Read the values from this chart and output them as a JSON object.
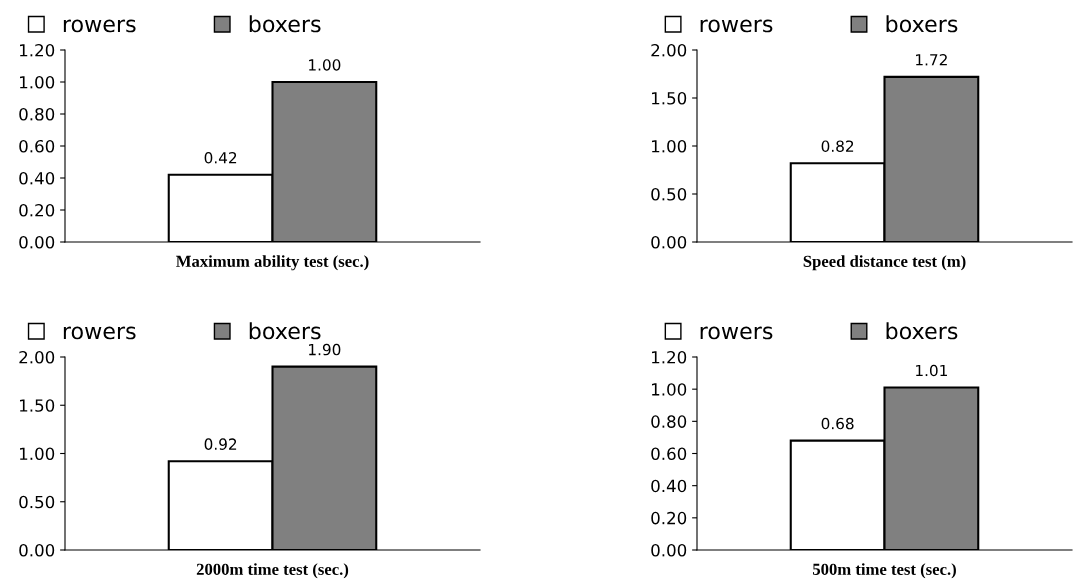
{
  "chart_data": [
    {
      "type": "bar",
      "xlabel": "Maximum ability test (sec.)",
      "categories": [
        null
      ],
      "legend": "top",
      "grid": false,
      "ylim": [
        0,
        1.2
      ],
      "yticks": [
        {
          "value": 0,
          "label": "0.00"
        },
        {
          "value": 0.2,
          "label": "0.20"
        },
        {
          "value": 0.4,
          "label": "0.40"
        },
        {
          "value": 0.6,
          "label": "0.60"
        },
        {
          "value": 0.8,
          "label": "0.80"
        },
        {
          "value": 1.0,
          "label": "1.00"
        },
        {
          "value": 1.2,
          "label": "1.20"
        }
      ],
      "series": [
        {
          "name": "rowers",
          "color": "#ffffff",
          "values": [
            0.42
          ],
          "value_labels": [
            "0.42"
          ]
        },
        {
          "name": "boxers",
          "color": "#808080",
          "values": [
            1.0
          ],
          "value_labels": [
            "1.00"
          ]
        }
      ]
    },
    {
      "type": "bar",
      "xlabel": "Speed distance test (m)",
      "categories": [
        null
      ],
      "legend": "top",
      "grid": false,
      "ylim": [
        0,
        2.0
      ],
      "yticks": [
        {
          "value": 0,
          "label": "0.00"
        },
        {
          "value": 0.5,
          "label": "0.50"
        },
        {
          "value": 1.0,
          "label": "1.00"
        },
        {
          "value": 1.5,
          "label": "1.50"
        },
        {
          "value": 2.0,
          "label": "2.00"
        }
      ],
      "series": [
        {
          "name": "rowers",
          "color": "#ffffff",
          "values": [
            0.82
          ],
          "value_labels": [
            "0.82"
          ]
        },
        {
          "name": "boxers",
          "color": "#808080",
          "values": [
            1.72
          ],
          "value_labels": [
            "1.72"
          ]
        }
      ]
    },
    {
      "type": "bar",
      "xlabel": "2000m time test (sec.)",
      "categories": [
        null
      ],
      "legend": "top",
      "grid": false,
      "ylim": [
        0,
        2.0
      ],
      "yticks": [
        {
          "value": 0,
          "label": "0.00"
        },
        {
          "value": 0.5,
          "label": "0.50"
        },
        {
          "value": 1.0,
          "label": "1.00"
        },
        {
          "value": 1.5,
          "label": "1.50"
        },
        {
          "value": 2.0,
          "label": "2.00"
        }
      ],
      "series": [
        {
          "name": "rowers",
          "color": "#ffffff",
          "values": [
            0.92
          ],
          "value_labels": [
            "0.92"
          ]
        },
        {
          "name": "boxers",
          "color": "#808080",
          "values": [
            1.9
          ],
          "value_labels": [
            "1.90"
          ]
        }
      ]
    },
    {
      "type": "bar",
      "xlabel": "500m time test (sec.)",
      "categories": [
        null
      ],
      "legend": "top",
      "grid": false,
      "ylim": [
        0,
        1.2
      ],
      "yticks": [
        {
          "value": 0,
          "label": "0.00"
        },
        {
          "value": 0.2,
          "label": "0.20"
        },
        {
          "value": 0.4,
          "label": "0.40"
        },
        {
          "value": 0.6,
          "label": "0.60"
        },
        {
          "value": 0.8,
          "label": "0.80"
        },
        {
          "value": 1.0,
          "label": "1.00"
        },
        {
          "value": 1.2,
          "label": "1.20"
        }
      ],
      "series": [
        {
          "name": "rowers",
          "color": "#ffffff",
          "values": [
            0.68
          ],
          "value_labels": [
            "0.68"
          ]
        },
        {
          "name": "boxers",
          "color": "#808080",
          "values": [
            1.01
          ],
          "value_labels": [
            "1.01"
          ]
        }
      ]
    }
  ]
}
